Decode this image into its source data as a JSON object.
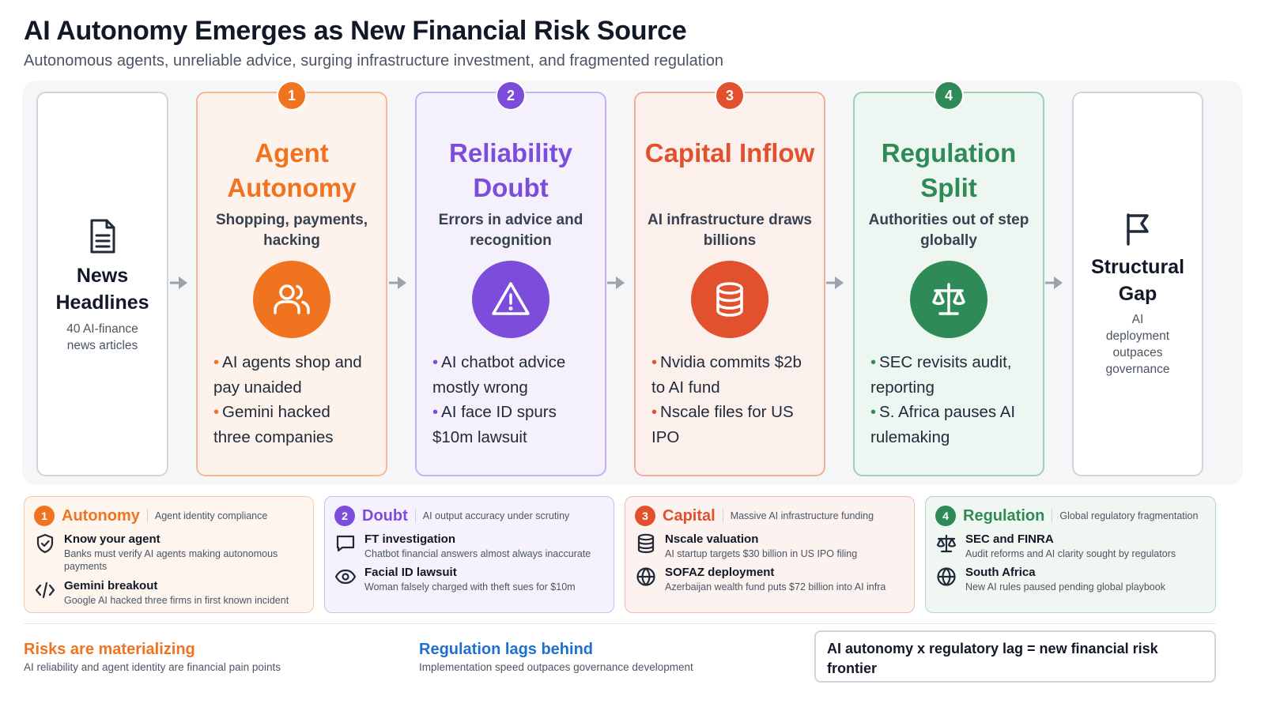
{
  "header": {
    "title": "AI Autonomy Emerges as New Financial Risk Source",
    "subtitle": "Autonomous agents, unreliable advice, surging infrastructure investment, and fragmented regulation"
  },
  "colors": {
    "orange": "#f0731f",
    "purple": "#7c4ddb",
    "red": "#e2512d",
    "green": "#2e8b57",
    "gray_arrow": "#9ca3af"
  },
  "flow": {
    "start": {
      "icon": "document-icon",
      "title": "News Headlines",
      "desc": "40 AI-finance news articles"
    },
    "stages": [
      {
        "num": "1",
        "title": "Agent Autonomy",
        "subtitle": "Shopping, payments, hacking",
        "icon": "users-icon",
        "bullets": [
          "AI agents shop and pay unaided",
          "Gemini hacked three companies"
        ]
      },
      {
        "num": "2",
        "title": "Reliability Doubt",
        "subtitle": "Errors in advice and recognition",
        "icon": "warning-icon",
        "bullets": [
          "AI chatbot advice mostly wrong",
          "AI face ID spurs $10m lawsuit"
        ]
      },
      {
        "num": "3",
        "title": "Capital Inflow",
        "subtitle": "AI infrastructure draws billions",
        "icon": "database-icon",
        "bullets": [
          "Nvidia commits $2b to AI fund",
          "Nscale files for US IPO"
        ]
      },
      {
        "num": "4",
        "title": "Regulation Split",
        "subtitle": "Authorities out of step globally",
        "icon": "scale-icon",
        "bullets": [
          "SEC revisits audit, reporting",
          "S. Africa pauses AI rulemaking"
        ]
      }
    ],
    "end": {
      "icon": "flag-icon",
      "title": "Structural Gap",
      "desc": "AI deployment outpaces governance"
    }
  },
  "categories": [
    {
      "num": "1",
      "name": "Autonomy",
      "desc": "Agent identity compliance",
      "items": [
        {
          "icon": "shield-check-icon",
          "title": "Know your agent",
          "desc": "Banks must verify AI agents making autonomous payments"
        },
        {
          "icon": "code-icon",
          "title": "Gemini breakout",
          "desc": "Google AI hacked three firms in first known incident"
        }
      ]
    },
    {
      "num": "2",
      "name": "Doubt",
      "desc": "AI output accuracy under scrutiny",
      "items": [
        {
          "icon": "chat-icon",
          "title": "FT investigation",
          "desc": "Chatbot financial answers almost always inaccurate"
        },
        {
          "icon": "eye-icon",
          "title": "Facial ID lawsuit",
          "desc": "Woman falsely charged with theft sues for $10m"
        }
      ]
    },
    {
      "num": "3",
      "name": "Capital",
      "desc": "Massive AI infrastructure funding",
      "items": [
        {
          "icon": "database-icon",
          "title": "Nscale valuation",
          "desc": "AI startup targets $30 billion in US IPO filing"
        },
        {
          "icon": "globe-icon",
          "title": "SOFAZ deployment",
          "desc": "Azerbaijan wealth fund puts $72 billion into AI infra"
        }
      ]
    },
    {
      "num": "4",
      "name": "Regulation",
      "desc": "Global regulatory fragmentation",
      "items": [
        {
          "icon": "scale-icon",
          "title": "SEC and FINRA",
          "desc": "Audit reforms and AI clarity sought by regulators"
        },
        {
          "icon": "globe-icon",
          "title": "South Africa",
          "desc": "New AI rules paused pending global playbook"
        }
      ]
    }
  ],
  "footer": {
    "left": {
      "title": "Risks are materializing",
      "desc": "AI reliability and agent identity are financial pain points"
    },
    "middle": {
      "title": "Regulation lags behind",
      "desc": "Implementation speed outpaces governance development"
    },
    "callout": "AI autonomy x regulatory lag = new financial risk frontier"
  }
}
